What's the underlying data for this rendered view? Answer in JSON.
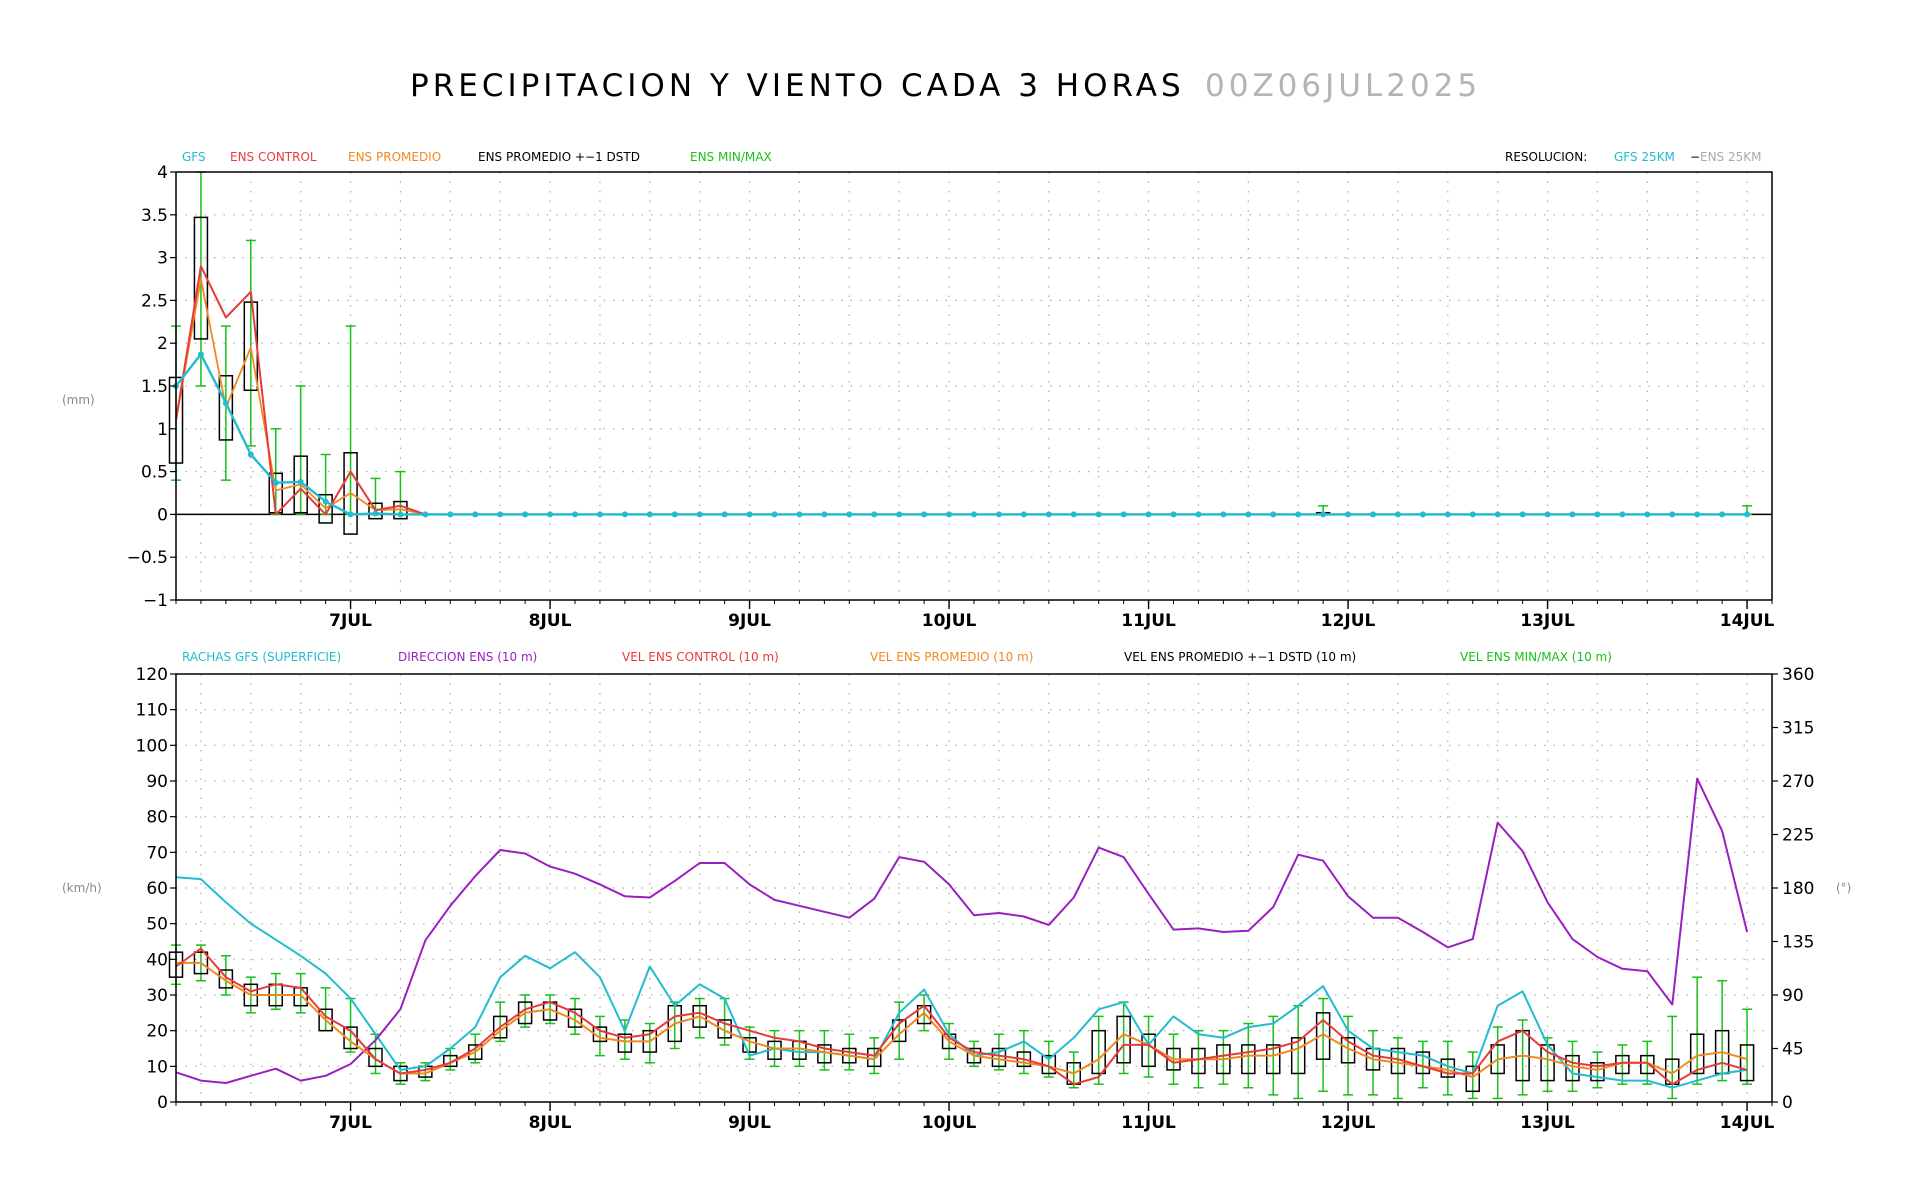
{
  "title": "PRECIPITACION Y VIENTO CADA 3 HORAS",
  "run": "00Z06JUL2025",
  "chart_data": [
    {
      "type": "line",
      "id": "precip",
      "ylabel": "(mm)",
      "ylim": [
        -1,
        4
      ],
      "yticks": [
        "−1",
        "−0.5",
        "0",
        "0.5",
        "1",
        "1.5",
        "2",
        "2.5",
        "3",
        "3.5",
        "4"
      ],
      "ytick_values": [
        -1,
        -0.5,
        0,
        0.5,
        1,
        1.5,
        2,
        2.5,
        3,
        3.5,
        4
      ],
      "xlim": [
        0,
        64
      ],
      "xticks": [
        "7JUL",
        "8JUL",
        "9JUL",
        "10JUL",
        "11JUL",
        "12JUL",
        "13JUL",
        "14JUL"
      ],
      "xtick_values": [
        7,
        15,
        23,
        31,
        39,
        47,
        55,
        63
      ],
      "grid": true,
      "legend": [
        "GFS",
        "ENS CONTROL",
        "ENS PROMEDIO",
        "ENS PROMEDIO +−1 DSTD",
        "ENS MIN/MAX"
      ],
      "resolution_label": "RESOLUCION:",
      "resolution_gfs": "GFS 25KM",
      "resolution_sep": "−",
      "resolution_ens": "ENS 25KM",
      "gfs": [
        1.5,
        1.87,
        1.3,
        0.7,
        0.37,
        0.38,
        0.15,
        0.0,
        0.01,
        0.0,
        0.0,
        0.0,
        0.0,
        0.0,
        0.0,
        0.0,
        0.0,
        0.0,
        0.0,
        0.0,
        0.0,
        0.0,
        0.0,
        0.0,
        0.0,
        0.0,
        0.0,
        0.0,
        0.0,
        0.0,
        0.0,
        0.0,
        0.0,
        0.0,
        0.0,
        0.0,
        0.0,
        0.0,
        0.0,
        0.0,
        0.0,
        0.0,
        0.0,
        0.0,
        0.0,
        0.0,
        0.0,
        0.0,
        0.0,
        0.0,
        0.0,
        0.0,
        0.0,
        0.0,
        0.0,
        0.0,
        0.0,
        0.0,
        0.0,
        0.0,
        0.0,
        0.0,
        0.0,
        0.0
      ],
      "control": [
        1.1,
        2.9,
        2.3,
        2.6,
        0.0,
        0.3,
        0.0,
        0.5,
        0.05,
        0.1,
        0.0,
        0.0,
        0.0,
        0.0,
        0.0,
        0.0,
        0.0,
        0.0,
        0.0,
        0.0,
        0.0,
        0.0,
        0.0,
        0.0,
        0.0,
        0.0,
        0.0,
        0.0,
        0.0,
        0.0,
        0.0,
        0.0,
        0.0,
        0.0,
        0.0,
        0.0,
        0.0,
        0.0,
        0.0,
        0.0,
        0.0,
        0.0,
        0.0,
        0.0,
        0.0,
        0.0,
        0.0,
        0.0,
        0.0,
        0.0,
        0.0,
        0.0,
        0.0,
        0.0,
        0.0,
        0.0,
        0.0,
        0.0,
        0.0,
        0.0,
        0.0,
        0.0,
        0.0,
        0.0
      ],
      "mean": [
        1.1,
        2.75,
        1.25,
        1.95,
        0.28,
        0.35,
        0.07,
        0.25,
        0.05,
        0.06,
        0.0,
        0.0,
        0.0,
        0.0,
        0.0,
        0.0,
        0.0,
        0.0,
        0.0,
        0.0,
        0.0,
        0.0,
        0.0,
        0.0,
        0.0,
        0.0,
        0.0,
        0.0,
        0.0,
        0.0,
        0.0,
        0.0,
        0.0,
        0.0,
        0.0,
        0.0,
        0.0,
        0.0,
        0.0,
        0.0,
        0.0,
        0.0,
        0.0,
        0.0,
        0.0,
        0.0,
        0.0,
        0.0,
        0.0,
        0.0,
        0.0,
        0.0,
        0.0,
        0.0,
        0.0,
        0.0,
        0.0,
        0.0,
        0.0,
        0.0,
        0.0,
        0.0,
        0.0,
        0.0
      ],
      "box_x": [
        0,
        1,
        2,
        3,
        4,
        5,
        6,
        7,
        8,
        9,
        46
      ],
      "box_low": [
        0.6,
        2.05,
        0.87,
        1.45,
        0.02,
        0.02,
        -0.1,
        -0.23,
        -0.05,
        -0.05,
        0.0
      ],
      "box_high": [
        1.6,
        3.47,
        1.62,
        2.48,
        0.48,
        0.68,
        0.23,
        0.72,
        0.13,
        0.15,
        0.02
      ],
      "minmax_x": [
        0,
        1,
        2,
        3,
        4,
        5,
        6,
        7,
        8,
        9,
        46,
        63
      ],
      "min": [
        0.4,
        1.5,
        0.4,
        0.8,
        0.0,
        0.0,
        0.0,
        0.0,
        0.0,
        0.0,
        0.0,
        0.0
      ],
      "max": [
        2.2,
        4.0,
        2.2,
        3.2,
        1.0,
        1.5,
        0.7,
        2.2,
        0.42,
        0.5,
        0.1,
        0.1
      ]
    },
    {
      "type": "line",
      "id": "wind",
      "ylabel": "(km/h)",
      "ylabel_right": "(°)",
      "ylim": [
        0,
        120
      ],
      "yticks": [
        "0",
        "10",
        "20",
        "30",
        "40",
        "50",
        "60",
        "70",
        "80",
        "90",
        "100",
        "110",
        "120"
      ],
      "ytick_values": [
        0,
        10,
        20,
        30,
        40,
        50,
        60,
        70,
        80,
        90,
        100,
        110,
        120
      ],
      "ylim_right": [
        0,
        360
      ],
      "yticks_right": [
        "0",
        "45",
        "90",
        "135",
        "180",
        "225",
        "270",
        "315",
        "360"
      ],
      "ytick_right_values": [
        0,
        45,
        90,
        135,
        180,
        225,
        270,
        315,
        360
      ],
      "xlim": [
        0,
        64
      ],
      "xticks": [
        "7JUL",
        "8JUL",
        "9JUL",
        "10JUL",
        "11JUL",
        "12JUL",
        "13JUL",
        "14JUL"
      ],
      "xtick_values": [
        7,
        15,
        23,
        31,
        39,
        47,
        55,
        63
      ],
      "grid": true,
      "legend": [
        "RACHAS GFS (SUPERFICIE)",
        "DIRECCION ENS (10 m)",
        "VEL ENS CONTROL (10 m)",
        "VEL ENS PROMEDIO (10 m)",
        "VEL ENS PROMEDIO +−1 DSTD (10 m)",
        "VEL ENS MIN/MAX (10 m)"
      ],
      "gusts": [
        63,
        62.5,
        56,
        50,
        45.5,
        41,
        36,
        29,
        19,
        9,
        10,
        15,
        21,
        35,
        41,
        37.5,
        42,
        35,
        20,
        38,
        27,
        33,
        29,
        13,
        15,
        14,
        14,
        13,
        12,
        25,
        31.5,
        19,
        13,
        14,
        17,
        12,
        18,
        26,
        28,
        16,
        24,
        19,
        18,
        21,
        22,
        27,
        32.5,
        20,
        15,
        14,
        13,
        10,
        8,
        27,
        31,
        16,
        8,
        7,
        6,
        6,
        4,
        6,
        8,
        9
      ],
      "direction": [
        25,
        18,
        16,
        22,
        28,
        18,
        22,
        32,
        52,
        78,
        136,
        165,
        190,
        212,
        209,
        198,
        192,
        183,
        173,
        172,
        186,
        201,
        201,
        183,
        170,
        165,
        160,
        155,
        171,
        206,
        202,
        183,
        157,
        159,
        156,
        149,
        172,
        214,
        206,
        175,
        145,
        146,
        143,
        144,
        164,
        208,
        203,
        173,
        155,
        155,
        143,
        130,
        137,
        235,
        211,
        168,
        137,
        122,
        112,
        110,
        82,
        272,
        228,
        143
      ],
      "control": [
        38,
        43,
        35,
        31,
        33,
        32,
        24,
        20,
        12,
        8,
        9,
        11,
        15,
        21,
        26,
        28,
        25,
        20,
        18,
        19,
        24,
        25,
        22,
        20,
        18,
        17,
        15,
        14,
        13,
        22,
        27,
        18,
        14,
        13,
        12,
        10,
        5,
        7,
        16,
        16,
        11,
        12,
        13,
        14,
        15,
        17,
        23,
        17,
        13,
        12,
        10,
        8,
        8,
        17,
        20,
        14,
        11,
        10,
        11,
        11,
        5,
        9,
        11,
        9
      ],
      "mean": [
        39,
        39,
        34,
        30,
        30,
        30,
        23,
        17,
        12,
        8,
        8,
        11,
        14,
        20,
        25,
        26,
        23,
        18,
        17,
        17,
        22,
        24,
        20,
        17,
        15,
        15,
        14,
        13,
        12,
        19,
        25,
        17,
        13,
        12,
        11,
        10,
        8,
        12,
        19,
        16,
        12,
        12,
        12,
        13,
        13,
        15,
        19,
        15,
        12,
        11,
        10,
        9,
        7,
        12,
        13,
        12,
        10,
        9,
        11,
        11,
        8,
        13,
        14,
        12
      ],
      "box_low": [
        35,
        36,
        32,
        27,
        27,
        27,
        20,
        15,
        10,
        6,
        7,
        10,
        12,
        18,
        22,
        23,
        21,
        17,
        14,
        14,
        17,
        21,
        18,
        14,
        12,
        12,
        11,
        11,
        10,
        17,
        22,
        15,
        11,
        10,
        10,
        8,
        5,
        8,
        11,
        10,
        9,
        8,
        8,
        8,
        8,
        8,
        12,
        11,
        9,
        8,
        8,
        7,
        3,
        8,
        6,
        6,
        6,
        6,
        8,
        8,
        5,
        8,
        8,
        6
      ],
      "box_high": [
        42,
        42,
        37,
        33,
        33,
        32,
        26,
        21,
        15,
        10,
        10,
        13,
        16,
        24,
        28,
        28,
        26,
        21,
        19,
        20,
        27,
        27,
        23,
        18,
        17,
        17,
        16,
        15,
        15,
        23,
        27,
        19,
        15,
        15,
        14,
        13,
        11,
        20,
        24,
        19,
        15,
        15,
        16,
        16,
        16,
        18,
        25,
        18,
        15,
        15,
        14,
        12,
        10,
        16,
        20,
        16,
        13,
        11,
        13,
        13,
        12,
        19,
        20,
        16
      ],
      "min": [
        33,
        34,
        30,
        25,
        26,
        25,
        20,
        14,
        8,
        5,
        6,
        9,
        11,
        17,
        21,
        22,
        19,
        13,
        12,
        11,
        15,
        18,
        16,
        12,
        10,
        10,
        9,
        9,
        8,
        12,
        20,
        12,
        10,
        9,
        8,
        7,
        4,
        5,
        8,
        7,
        5,
        4,
        5,
        4,
        2,
        1,
        3,
        2,
        2,
        1,
        4,
        2,
        1,
        1,
        2,
        3,
        3,
        4,
        5,
        5,
        1,
        5,
        6,
        5
      ],
      "max": [
        44,
        44,
        41,
        35,
        36,
        36,
        32,
        29,
        19,
        11,
        11,
        15,
        19,
        28,
        30,
        30,
        29,
        24,
        23,
        22,
        28,
        29,
        29,
        21,
        20,
        20,
        20,
        19,
        18,
        28,
        30,
        22,
        17,
        19,
        20,
        17,
        14,
        24,
        28,
        24,
        19,
        20,
        20,
        22,
        24,
        27,
        29,
        24,
        20,
        18,
        17,
        17,
        14,
        21,
        23,
        18,
        17,
        14,
        16,
        17,
        24,
        35,
        34,
        26
      ]
    }
  ]
}
